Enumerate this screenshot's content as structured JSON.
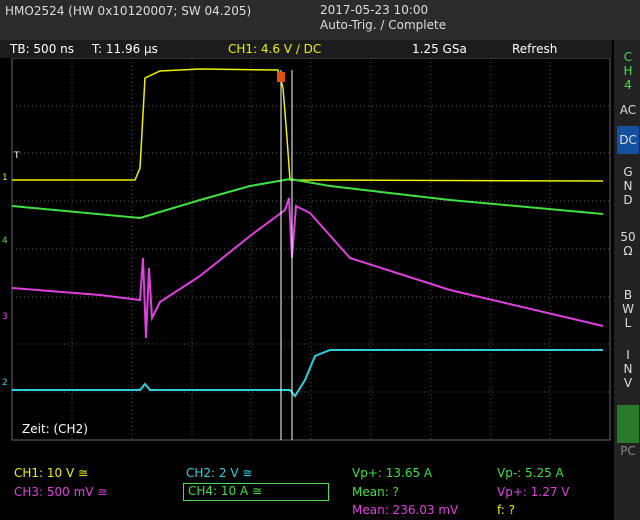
{
  "header": {
    "device": "HMO2524 (HW 0x10120007; SW 04.205)",
    "datetime": "2017-05-23 10:00",
    "status": "Auto-Trig. / Complete"
  },
  "settings": {
    "timebase": "TB: 500 ns",
    "trigger_time": "T: 11.96 µs",
    "trigger": "CH1: 4.6 V ∕ DC",
    "sample_rate": "1.25 GSa",
    "mode": "Refresh"
  },
  "side_panel": {
    "channel": "CH4",
    "buttons": [
      "AC",
      "DC",
      "GND",
      "50 Ω",
      "BWL",
      "INV"
    ],
    "bottom": "PC"
  },
  "plot": {
    "label": "Zeit: (CH2)",
    "trigger_marker": "T",
    "channel_markers": [
      "1",
      "4",
      "3",
      "2"
    ]
  },
  "footer": {
    "ch1": "CH1: 10 V ≅",
    "ch2": "CH2: 2 V ≅",
    "ch3": "CH3: 500 mV ≅",
    "ch4": "CH4: 10 A ≅",
    "meas": [
      "Vp+: 13.65 A",
      "Vp-: 5.25 A",
      "Mean: ?",
      "Vp+: 1.27 V",
      "Mean: 236.03 mV",
      "f: ?"
    ]
  }
}
